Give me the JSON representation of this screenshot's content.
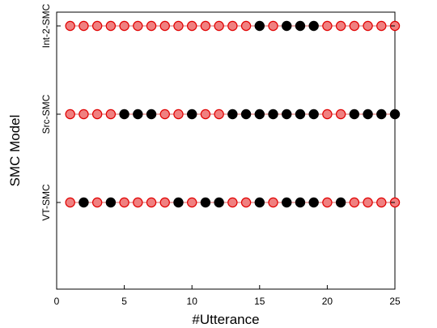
{
  "chart_data": {
    "type": "scatter",
    "title": "",
    "xlabel": "#Utterance",
    "ylabel": "SMC Model",
    "xlim": [
      0,
      25
    ],
    "xticks": [
      0,
      5,
      10,
      15,
      20,
      25
    ],
    "grid": false,
    "legend": "none",
    "colors": {
      "marker_open": "#f08080",
      "marker_edge": "#e00000",
      "marker_filled": "#000000",
      "line": "#e06060"
    },
    "marker_legend": {
      "open": "pink circle with red edge",
      "filled": "black circle"
    },
    "x": [
      1,
      2,
      3,
      4,
      5,
      6,
      7,
      8,
      9,
      10,
      11,
      12,
      13,
      14,
      15,
      16,
      17,
      18,
      19,
      20,
      21,
      22,
      23,
      24,
      25
    ],
    "series": [
      {
        "name": "Int-2-SMC",
        "filled": [
          0,
          0,
          0,
          0,
          0,
          0,
          0,
          0,
          0,
          0,
          0,
          0,
          0,
          0,
          1,
          0,
          1,
          1,
          1,
          0,
          0,
          0,
          0,
          0,
          0
        ]
      },
      {
        "name": "Src-SMC",
        "filled": [
          0,
          0,
          0,
          0,
          1,
          1,
          1,
          0,
          0,
          1,
          0,
          0,
          1,
          1,
          1,
          1,
          1,
          1,
          1,
          0,
          0,
          1,
          1,
          1,
          1
        ]
      },
      {
        "name": "VT-SMC",
        "filled": [
          0,
          1,
          0,
          1,
          0,
          0,
          0,
          0,
          1,
          0,
          1,
          1,
          0,
          0,
          1,
          0,
          1,
          1,
          1,
          0,
          1,
          0,
          0,
          0,
          0
        ]
      }
    ]
  }
}
